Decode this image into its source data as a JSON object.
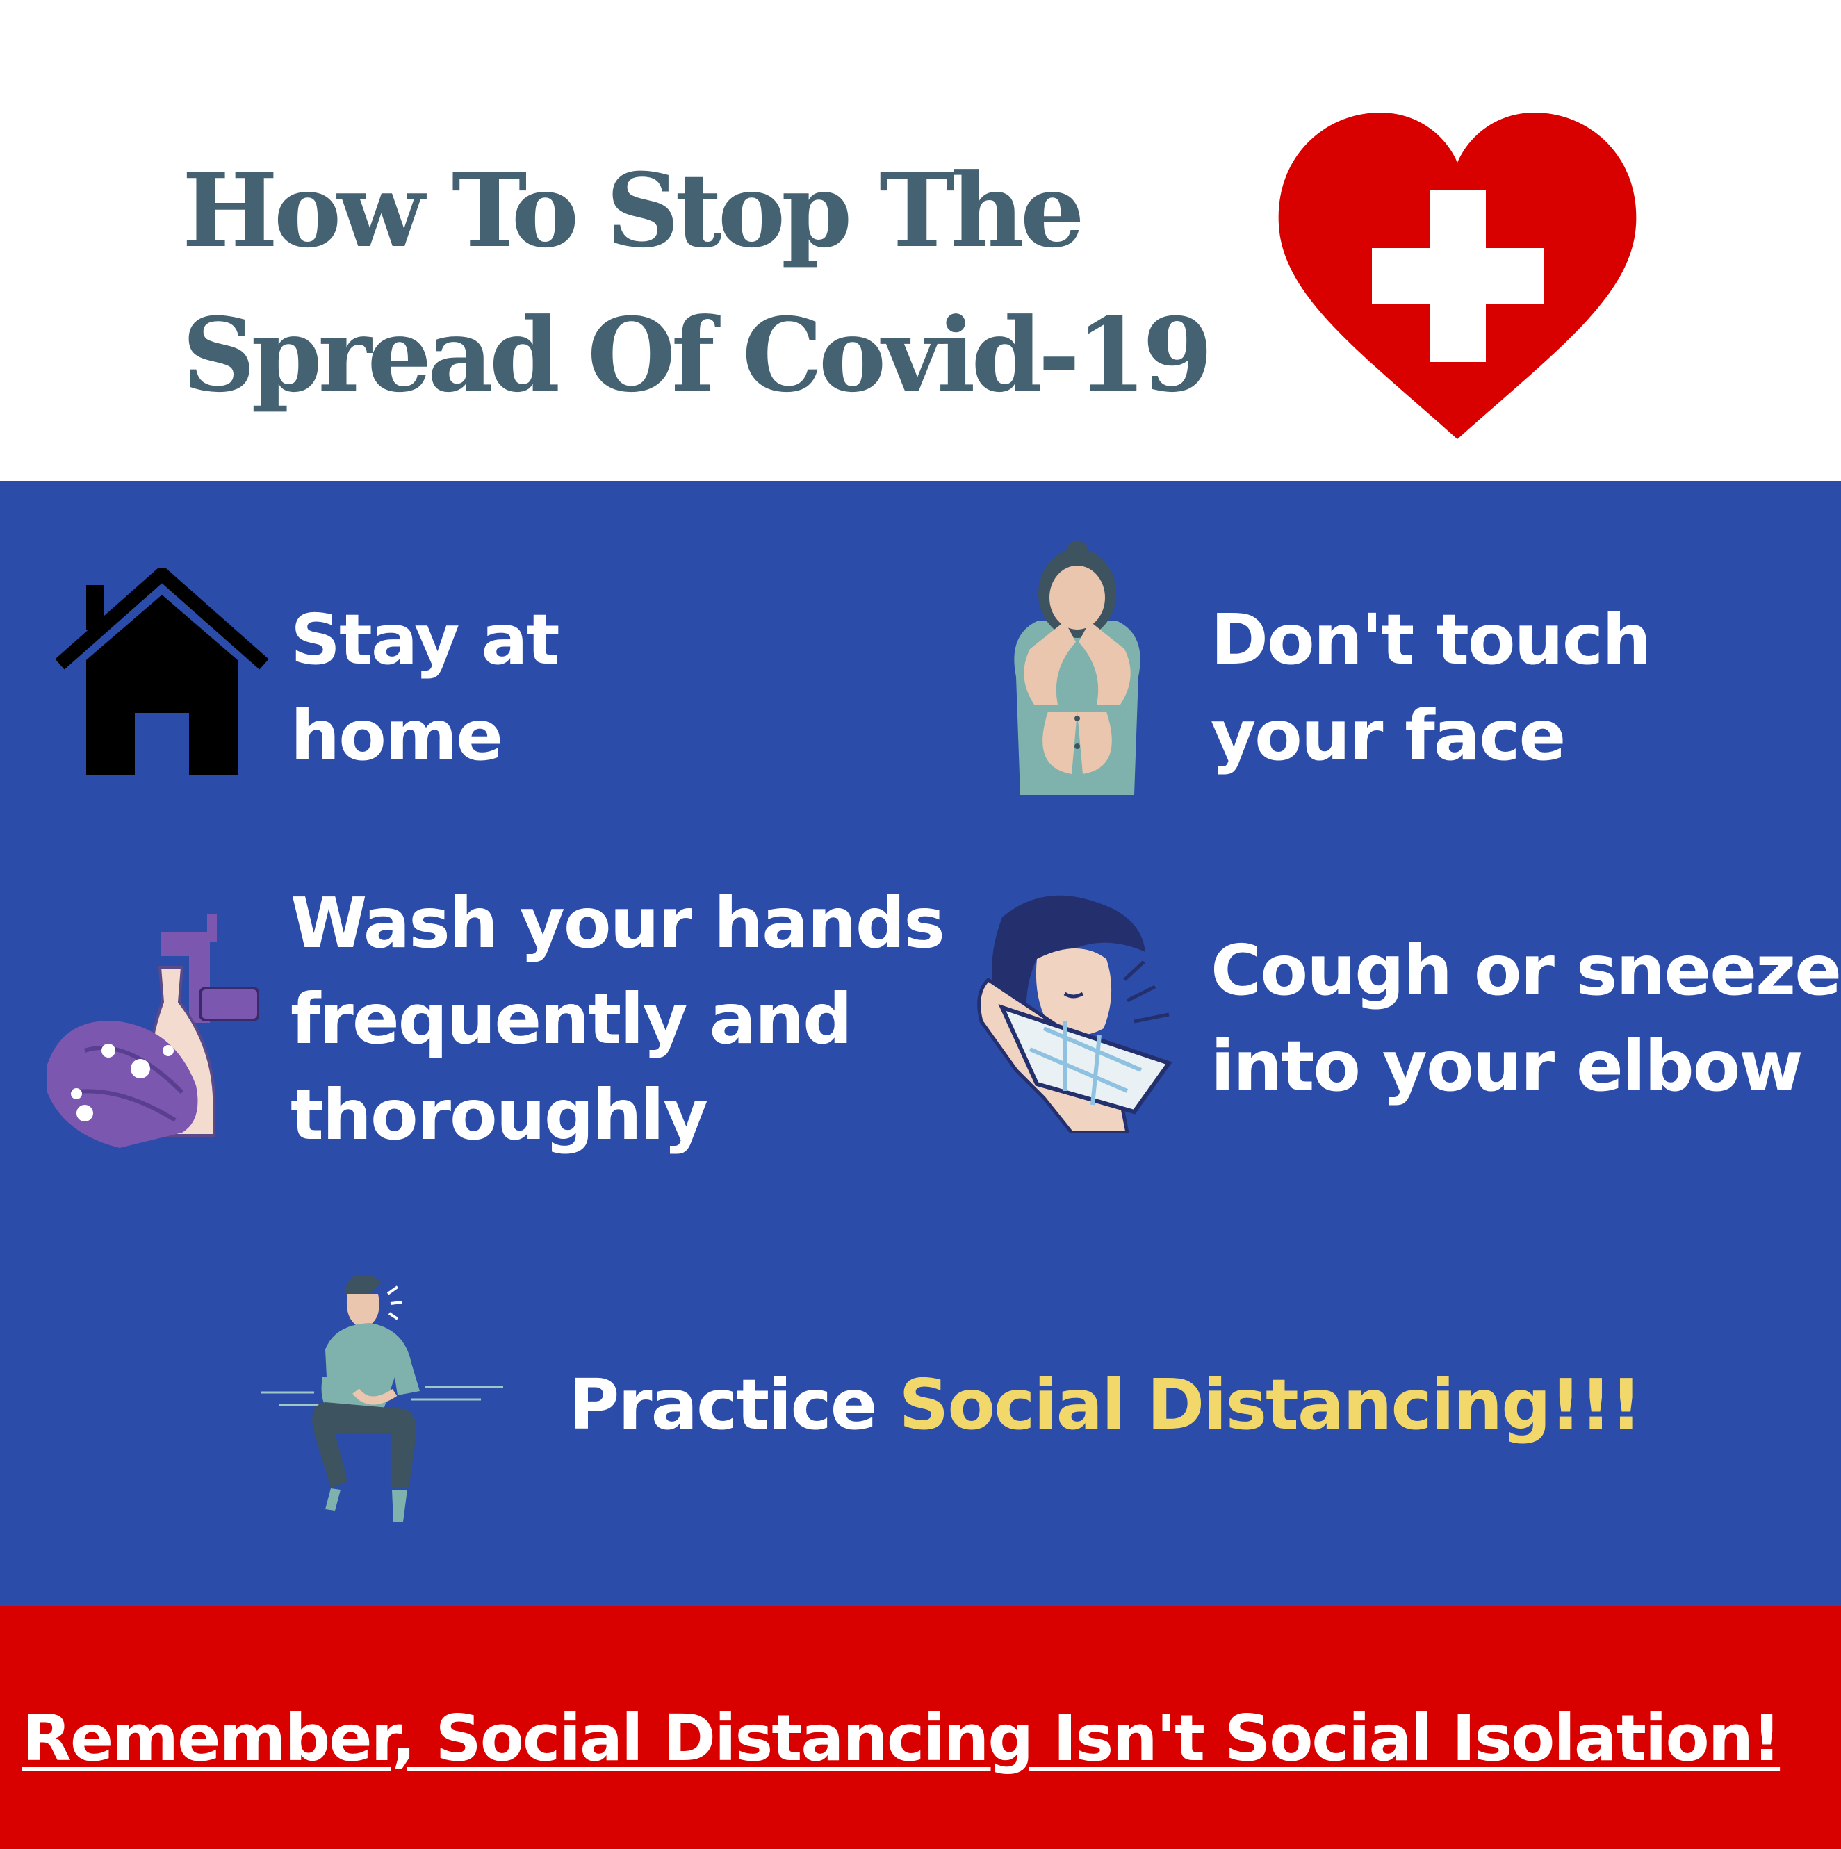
{
  "header": {
    "title_line1": "How To Stop The",
    "title_line2": "Spread Of Covid-19",
    "icon": "heart-cross-icon"
  },
  "tips": [
    {
      "line1": "Stay at",
      "line2": "home",
      "icon": "house-icon"
    },
    {
      "line1": "Don't touch",
      "line2": "your face",
      "icon": "face-touch-person-icon"
    },
    {
      "line1": "Wash your hands",
      "line2": "frequently and",
      "line3": "thoroughly",
      "icon": "hand-washing-icon"
    },
    {
      "line1": "Cough or sneeze",
      "line2": "into your elbow",
      "icon": "sneeze-elbow-person-icon"
    }
  ],
  "social": {
    "prefix": "Practice ",
    "highlight": "Social Distancing!!!",
    "icon": "sitting-person-icon"
  },
  "footer": {
    "text": "Remember, Social Distancing Isn't Social Isolation!"
  },
  "colors": {
    "title": "#456272",
    "main_bg": "#2b4ca8",
    "footer_bg": "#d90000",
    "heart": "#d90000",
    "accent": "#f2d86b"
  }
}
